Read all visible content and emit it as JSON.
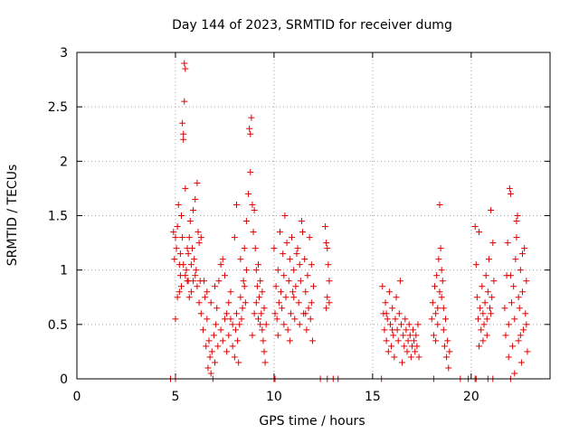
{
  "chart_data": {
    "type": "scatter",
    "title": "Day 144 of 2023, SRMTID for receiver dumg",
    "xlabel": "GPS time / hours",
    "ylabel": "SRMTID / TECUs",
    "xlim": [
      0,
      24
    ],
    "ylim": [
      0,
      3
    ],
    "x_ticks": [
      0,
      5,
      10,
      15,
      20
    ],
    "y_ticks": [
      0,
      0.5,
      1,
      1.5,
      2,
      2.5,
      3
    ],
    "x_tick_labels": [
      "0",
      "5",
      "10",
      "15",
      "20"
    ],
    "y_tick_labels": [
      "0",
      "0.5",
      "1",
      "1.5",
      "2",
      "2.5",
      "3"
    ],
    "grid": true,
    "marker": "+",
    "color": "#e00000",
    "series": [
      {
        "name": "SRMTID",
        "points": [
          [
            4.75,
            0.0
          ],
          [
            5.0,
            0.0
          ],
          [
            10.0,
            0.0
          ],
          [
            10.05,
            0.0
          ],
          [
            12.35,
            0.0
          ],
          [
            12.7,
            0.0
          ],
          [
            13.0,
            0.0
          ],
          [
            13.25,
            0.0
          ],
          [
            15.45,
            0.0
          ],
          [
            18.1,
            0.0
          ],
          [
            19.45,
            0.0
          ],
          [
            19.85,
            0.0
          ],
          [
            20.2,
            0.0
          ],
          [
            20.25,
            0.0
          ],
          [
            20.85,
            0.0
          ],
          [
            21.1,
            0.0
          ],
          [
            22.0,
            0.0
          ],
          [
            4.9,
            1.35
          ],
          [
            4.95,
            1.1
          ],
          [
            5.0,
            1.3
          ],
          [
            5.05,
            1.2
          ],
          [
            5.1,
            1.4
          ],
          [
            5.15,
            1.6
          ],
          [
            5.2,
            1.05
          ],
          [
            5.25,
            0.95
          ],
          [
            5.3,
            1.5
          ],
          [
            5.35,
            2.35
          ],
          [
            5.4,
            2.2
          ],
          [
            5.45,
            2.9
          ],
          [
            5.5,
            2.85
          ],
          [
            5.45,
            2.55
          ],
          [
            5.4,
            2.25
          ],
          [
            5.5,
            1.75
          ],
          [
            5.55,
            1.0
          ],
          [
            5.6,
            0.9
          ],
          [
            5.65,
            1.15
          ],
          [
            5.7,
            1.3
          ],
          [
            5.75,
            1.45
          ],
          [
            5.8,
            0.8
          ],
          [
            5.85,
            1.2
          ],
          [
            5.9,
            1.55
          ],
          [
            5.95,
            1.1
          ],
          [
            6.0,
            1.65
          ],
          [
            6.05,
            1.0
          ],
          [
            6.1,
            1.8
          ],
          [
            6.15,
            1.35
          ],
          [
            6.2,
            1.25
          ],
          [
            6.25,
            0.9
          ],
          [
            6.3,
            1.3
          ],
          [
            5.0,
            0.55
          ],
          [
            5.1,
            0.75
          ],
          [
            5.3,
            0.85
          ],
          [
            5.5,
            0.95
          ],
          [
            5.7,
            0.75
          ],
          [
            5.9,
            0.9
          ],
          [
            6.1,
            0.85
          ],
          [
            6.2,
            0.7
          ],
          [
            5.2,
            0.8
          ],
          [
            5.4,
            1.05
          ],
          [
            5.6,
            1.2
          ],
          [
            5.8,
            1.05
          ],
          [
            6.0,
            0.95
          ],
          [
            5.35,
            1.3
          ],
          [
            5.65,
            0.9
          ],
          [
            5.25,
            1.15
          ],
          [
            6.3,
            0.6
          ],
          [
            6.4,
            0.45
          ],
          [
            6.5,
            0.75
          ],
          [
            6.55,
            0.3
          ],
          [
            6.6,
            0.55
          ],
          [
            6.65,
            0.1
          ],
          [
            6.7,
            0.35
          ],
          [
            6.75,
            0.2
          ],
          [
            6.8,
            0.05
          ],
          [
            6.85,
            0.25
          ],
          [
            6.9,
            0.0
          ],
          [
            6.95,
            0.4
          ],
          [
            7.0,
            0.15
          ],
          [
            7.05,
            0.5
          ],
          [
            7.1,
            0.65
          ],
          [
            7.15,
            0.3
          ],
          [
            6.45,
            0.9
          ],
          [
            6.6,
            0.8
          ],
          [
            6.8,
            0.7
          ],
          [
            7.0,
            0.85
          ],
          [
            7.2,
            0.9
          ],
          [
            7.3,
            1.05
          ],
          [
            7.4,
            1.1
          ],
          [
            7.5,
            0.95
          ],
          [
            7.6,
            0.6
          ],
          [
            7.7,
            0.4
          ],
          [
            7.8,
            0.55
          ],
          [
            7.9,
            0.3
          ],
          [
            7.3,
            0.45
          ],
          [
            7.4,
            0.35
          ],
          [
            7.5,
            0.55
          ],
          [
            7.6,
            0.25
          ],
          [
            7.7,
            0.7
          ],
          [
            7.8,
            0.8
          ],
          [
            7.9,
            0.5
          ],
          [
            8.0,
            0.2
          ],
          [
            8.05,
            0.45
          ],
          [
            8.1,
            0.6
          ],
          [
            8.15,
            0.35
          ],
          [
            8.2,
            0.15
          ],
          [
            8.25,
            0.5
          ],
          [
            8.3,
            0.75
          ],
          [
            8.35,
            0.55
          ],
          [
            8.4,
            0.65
          ],
          [
            8.45,
            0.9
          ],
          [
            8.5,
            0.85
          ],
          [
            8.55,
            0.7
          ],
          [
            8.6,
            1.0
          ],
          [
            8.0,
            1.3
          ],
          [
            8.1,
            1.6
          ],
          [
            8.3,
            1.1
          ],
          [
            8.5,
            1.2
          ],
          [
            8.6,
            1.45
          ],
          [
            8.7,
            1.7
          ],
          [
            8.75,
            2.3
          ],
          [
            8.8,
            2.25
          ],
          [
            8.85,
            2.4
          ],
          [
            8.8,
            1.9
          ],
          [
            8.9,
            1.6
          ],
          [
            8.95,
            1.35
          ],
          [
            9.0,
            1.55
          ],
          [
            9.05,
            1.2
          ],
          [
            9.1,
            1.0
          ],
          [
            9.15,
            0.85
          ],
          [
            9.2,
            0.55
          ],
          [
            9.25,
            0.75
          ],
          [
            9.3,
            0.5
          ],
          [
            9.35,
            0.6
          ],
          [
            9.4,
            0.45
          ],
          [
            9.45,
            0.35
          ],
          [
            9.5,
            0.25
          ],
          [
            9.55,
            0.15
          ],
          [
            9.2,
            1.05
          ],
          [
            9.3,
            0.9
          ],
          [
            9.4,
            0.8
          ],
          [
            9.5,
            0.65
          ],
          [
            9.6,
            0.5
          ],
          [
            9.1,
            0.7
          ],
          [
            9.0,
            0.6
          ],
          [
            8.9,
            0.4
          ],
          [
            10.0,
            1.2
          ],
          [
            10.05,
            0.6
          ],
          [
            10.1,
            0.85
          ],
          [
            10.15,
            0.55
          ],
          [
            10.2,
            1.0
          ],
          [
            10.25,
            0.7
          ],
          [
            10.3,
            1.35
          ],
          [
            10.35,
            0.8
          ],
          [
            10.4,
            0.65
          ],
          [
            10.45,
            1.15
          ],
          [
            10.5,
            0.95
          ],
          [
            10.55,
            1.5
          ],
          [
            10.6,
            0.75
          ],
          [
            10.65,
            1.25
          ],
          [
            10.7,
            0.45
          ],
          [
            10.75,
            0.9
          ],
          [
            10.8,
            1.1
          ],
          [
            10.85,
            0.6
          ],
          [
            10.9,
            1.3
          ],
          [
            10.95,
            0.8
          ],
          [
            11.0,
            1.0
          ],
          [
            11.05,
            0.55
          ],
          [
            11.1,
            0.85
          ],
          [
            11.15,
            1.15
          ],
          [
            11.2,
            1.2
          ],
          [
            11.25,
            0.7
          ],
          [
            11.3,
            1.05
          ],
          [
            11.35,
            0.9
          ],
          [
            11.4,
            1.45
          ],
          [
            11.45,
            1.35
          ],
          [
            11.5,
            0.6
          ],
          [
            11.55,
            1.1
          ],
          [
            11.6,
            0.8
          ],
          [
            11.65,
            0.45
          ],
          [
            11.7,
            0.95
          ],
          [
            11.75,
            0.65
          ],
          [
            11.8,
            1.3
          ],
          [
            11.85,
            0.55
          ],
          [
            11.9,
            1.05
          ],
          [
            11.95,
            0.35
          ],
          [
            10.2,
            0.4
          ],
          [
            10.5,
            0.5
          ],
          [
            10.8,
            0.35
          ],
          [
            11.0,
            0.75
          ],
          [
            11.3,
            0.5
          ],
          [
            11.6,
            0.6
          ],
          [
            11.9,
            0.7
          ],
          [
            12.0,
            0.85
          ],
          [
            12.6,
            1.4
          ],
          [
            12.65,
            1.25
          ],
          [
            12.7,
            1.2
          ],
          [
            12.75,
            1.05
          ],
          [
            12.8,
            0.9
          ],
          [
            12.7,
            0.75
          ],
          [
            12.65,
            0.65
          ],
          [
            12.8,
            0.7
          ],
          [
            15.5,
            0.85
          ],
          [
            15.55,
            0.6
          ],
          [
            15.6,
            0.45
          ],
          [
            15.65,
            0.7
          ],
          [
            15.7,
            0.35
          ],
          [
            15.75,
            0.55
          ],
          [
            15.8,
            0.25
          ],
          [
            15.85,
            0.8
          ],
          [
            15.9,
            0.5
          ],
          [
            15.95,
            0.3
          ],
          [
            16.0,
            0.65
          ],
          [
            16.05,
            0.4
          ],
          [
            16.1,
            0.2
          ],
          [
            16.15,
            0.55
          ],
          [
            16.2,
            0.75
          ],
          [
            16.25,
            0.45
          ],
          [
            16.3,
            0.35
          ],
          [
            16.35,
            0.6
          ],
          [
            16.4,
            0.9
          ],
          [
            16.45,
            0.5
          ],
          [
            16.5,
            0.15
          ],
          [
            16.55,
            0.4
          ],
          [
            16.6,
            0.3
          ],
          [
            16.65,
            0.55
          ],
          [
            16.7,
            0.45
          ],
          [
            16.75,
            0.25
          ],
          [
            16.8,
            0.35
          ],
          [
            16.85,
            0.5
          ],
          [
            16.9,
            0.4
          ],
          [
            16.95,
            0.2
          ],
          [
            17.0,
            0.3
          ],
          [
            17.05,
            0.45
          ],
          [
            17.1,
            0.35
          ],
          [
            17.15,
            0.25
          ],
          [
            17.2,
            0.4
          ],
          [
            17.25,
            0.3
          ],
          [
            17.3,
            0.5
          ],
          [
            17.35,
            0.2
          ],
          [
            15.7,
            0.6
          ],
          [
            16.0,
            0.45
          ],
          [
            18.0,
            0.55
          ],
          [
            18.05,
            0.7
          ],
          [
            18.1,
            0.4
          ],
          [
            18.15,
            0.85
          ],
          [
            18.2,
            0.6
          ],
          [
            18.25,
            0.95
          ],
          [
            18.3,
            0.5
          ],
          [
            18.35,
            1.1
          ],
          [
            18.4,
            1.6
          ],
          [
            18.45,
            1.2
          ],
          [
            18.5,
            0.75
          ],
          [
            18.55,
            0.9
          ],
          [
            18.6,
            0.45
          ],
          [
            18.65,
            0.3
          ],
          [
            18.7,
            0.55
          ],
          [
            18.75,
            0.2
          ],
          [
            18.8,
            0.35
          ],
          [
            18.85,
            0.1
          ],
          [
            18.9,
            0.25
          ],
          [
            18.3,
            0.65
          ],
          [
            18.2,
            0.35
          ],
          [
            18.5,
            1.0
          ],
          [
            18.4,
            0.8
          ],
          [
            18.6,
            0.65
          ],
          [
            20.2,
            1.4
          ],
          [
            20.25,
            1.05
          ],
          [
            20.3,
            0.75
          ],
          [
            20.35,
            0.55
          ],
          [
            20.4,
            0.3
          ],
          [
            20.45,
            0.65
          ],
          [
            20.5,
            0.45
          ],
          [
            20.55,
            0.85
          ],
          [
            20.6,
            0.6
          ],
          [
            20.65,
            0.5
          ],
          [
            20.7,
            0.7
          ],
          [
            20.75,
            0.95
          ],
          [
            20.8,
            0.55
          ],
          [
            20.85,
            0.8
          ],
          [
            20.9,
            1.1
          ],
          [
            20.95,
            0.65
          ],
          [
            21.0,
            1.55
          ],
          [
            21.05,
            0.75
          ],
          [
            21.1,
            1.25
          ],
          [
            21.15,
            0.9
          ],
          [
            20.4,
            1.35
          ],
          [
            20.6,
            0.35
          ],
          [
            20.8,
            0.4
          ],
          [
            21.0,
            0.6
          ],
          [
            21.7,
            0.65
          ],
          [
            21.75,
            0.4
          ],
          [
            21.8,
            0.95
          ],
          [
            21.85,
            1.25
          ],
          [
            21.9,
            0.5
          ],
          [
            21.95,
            1.75
          ],
          [
            22.0,
            1.7
          ],
          [
            22.05,
            0.7
          ],
          [
            22.1,
            0.3
          ],
          [
            22.15,
            0.85
          ],
          [
            22.2,
            0.55
          ],
          [
            22.25,
            1.1
          ],
          [
            22.3,
            1.45
          ],
          [
            22.35,
            1.5
          ],
          [
            22.4,
            0.35
          ],
          [
            22.45,
            0.65
          ],
          [
            22.5,
            1.0
          ],
          [
            22.55,
            0.15
          ],
          [
            22.6,
            0.8
          ],
          [
            22.65,
            0.45
          ],
          [
            22.7,
            1.2
          ],
          [
            22.75,
            0.6
          ],
          [
            22.8,
            0.9
          ],
          [
            22.85,
            0.25
          ],
          [
            21.9,
            0.2
          ],
          [
            22.0,
            0.95
          ],
          [
            22.2,
            0.05
          ],
          [
            22.4,
            0.75
          ],
          [
            22.6,
            1.15
          ],
          [
            22.8,
            0.5
          ],
          [
            22.3,
            1.3
          ],
          [
            22.5,
            0.4
          ]
        ]
      }
    ]
  }
}
